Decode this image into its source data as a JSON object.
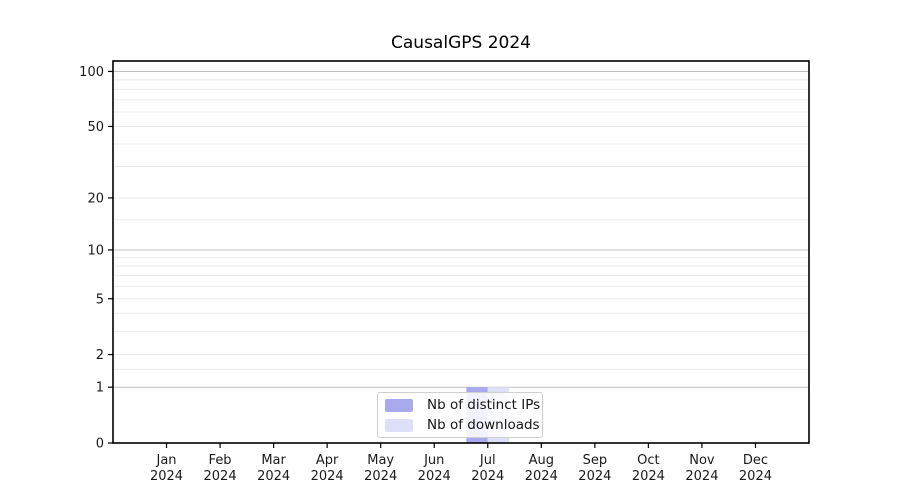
{
  "figure": {
    "background": "#ffffff"
  },
  "chart_data": {
    "type": "bar",
    "title": "CausalGPS 2024",
    "categories": [
      "Jan",
      "Feb",
      "Mar",
      "Apr",
      "May",
      "Jun",
      "Jul",
      "Aug",
      "Sep",
      "Oct",
      "Nov",
      "Dec"
    ],
    "category_year_suffix": "2024",
    "series": [
      {
        "name": "Nb of distinct IPs",
        "color": "#a9aaee",
        "values": [
          0,
          0,
          0,
          0,
          0,
          0,
          1,
          0,
          0,
          0,
          0,
          0
        ]
      },
      {
        "name": "Nb of downloads",
        "color": "#dedff8",
        "values": [
          0,
          0,
          0,
          0,
          0,
          0,
          1,
          0,
          0,
          0,
          0,
          0
        ]
      }
    ],
    "xlabel": "",
    "ylabel": "",
    "y_axis": {
      "scale": "log1p",
      "ticks": [
        0,
        1,
        2,
        5,
        10,
        20,
        50,
        100
      ],
      "max": 114
    },
    "grid": {
      "major_lines": [
        1,
        10,
        100
      ],
      "minor_lines": [
        1.5,
        2,
        3,
        4,
        5,
        6,
        7,
        8,
        9,
        15,
        20,
        30,
        40,
        50,
        60,
        70,
        80,
        90
      ],
      "major_color": "#c2c2c2",
      "minor_color": "#ebebeb"
    },
    "legend": {
      "position": "lower center"
    },
    "axis_color": "#000000",
    "tick_label_color": "#1a1a1a"
  }
}
